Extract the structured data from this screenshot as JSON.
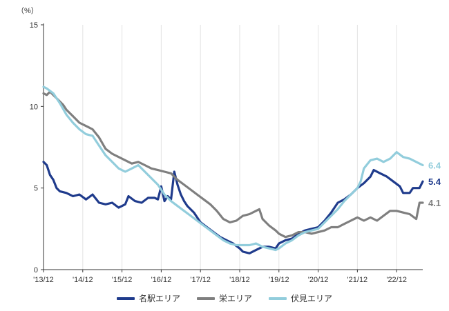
{
  "chart_data": {
    "type": "line",
    "unit_label": "（%）",
    "ylim": [
      0,
      15
    ],
    "yticks": [
      0,
      5,
      10,
      15
    ],
    "xlim": [
      2013.917,
      2023.583
    ],
    "xticks": [
      {
        "label": "'13/12",
        "value": 2013.917
      },
      {
        "label": "'14/12",
        "value": 2014.917
      },
      {
        "label": "'15/12",
        "value": 2015.917
      },
      {
        "label": "'16/12",
        "value": 2016.917
      },
      {
        "label": "'17/12",
        "value": 2017.917
      },
      {
        "label": "'18/12",
        "value": 2018.917
      },
      {
        "label": "'19/12",
        "value": 2019.917
      },
      {
        "label": "'20/12",
        "value": 2020.917
      },
      {
        "label": "'21/12",
        "value": 2021.917
      },
      {
        "label": "'22/12",
        "value": 2022.917
      }
    ],
    "series": [
      {
        "name": "名駅エリア",
        "color": "#1f3b8c",
        "end_label": "5.4",
        "points": [
          [
            2013.917,
            6.6
          ],
          [
            2014.0,
            6.4
          ],
          [
            2014.083,
            5.8
          ],
          [
            2014.167,
            5.5
          ],
          [
            2014.25,
            5.0
          ],
          [
            2014.333,
            4.8
          ],
          [
            2014.5,
            4.7
          ],
          [
            2014.667,
            4.5
          ],
          [
            2014.833,
            4.6
          ],
          [
            2015.0,
            4.3
          ],
          [
            2015.167,
            4.6
          ],
          [
            2015.333,
            4.1
          ],
          [
            2015.5,
            4.0
          ],
          [
            2015.667,
            4.1
          ],
          [
            2015.833,
            3.8
          ],
          [
            2016.0,
            4.0
          ],
          [
            2016.083,
            4.5
          ],
          [
            2016.25,
            4.2
          ],
          [
            2016.417,
            4.1
          ],
          [
            2016.583,
            4.4
          ],
          [
            2016.75,
            4.4
          ],
          [
            2016.833,
            4.3
          ],
          [
            2016.917,
            5.1
          ],
          [
            2017.0,
            4.2
          ],
          [
            2017.083,
            4.5
          ],
          [
            2017.167,
            4.3
          ],
          [
            2017.25,
            6.0
          ],
          [
            2017.333,
            5.2
          ],
          [
            2017.417,
            4.6
          ],
          [
            2017.5,
            4.2
          ],
          [
            2017.583,
            3.9
          ],
          [
            2017.75,
            3.5
          ],
          [
            2017.917,
            2.9
          ],
          [
            2018.083,
            2.6
          ],
          [
            2018.25,
            2.3
          ],
          [
            2018.417,
            2.0
          ],
          [
            2018.583,
            1.8
          ],
          [
            2018.75,
            1.6
          ],
          [
            2018.917,
            1.3
          ],
          [
            2019.0,
            1.1
          ],
          [
            2019.167,
            1.0
          ],
          [
            2019.333,
            1.2
          ],
          [
            2019.5,
            1.4
          ],
          [
            2019.667,
            1.4
          ],
          [
            2019.833,
            1.3
          ],
          [
            2019.917,
            1.6
          ],
          [
            2020.083,
            1.8
          ],
          [
            2020.25,
            1.9
          ],
          [
            2020.417,
            2.2
          ],
          [
            2020.583,
            2.4
          ],
          [
            2020.75,
            2.5
          ],
          [
            2020.917,
            2.6
          ],
          [
            2021.083,
            3.0
          ],
          [
            2021.25,
            3.5
          ],
          [
            2021.417,
            4.1
          ],
          [
            2021.583,
            4.3
          ],
          [
            2021.75,
            4.6
          ],
          [
            2021.917,
            5.0
          ],
          [
            2022.083,
            5.3
          ],
          [
            2022.25,
            5.7
          ],
          [
            2022.333,
            6.1
          ],
          [
            2022.5,
            5.9
          ],
          [
            2022.667,
            5.7
          ],
          [
            2022.833,
            5.4
          ],
          [
            2023.0,
            5.1
          ],
          [
            2023.083,
            4.7
          ],
          [
            2023.25,
            4.7
          ],
          [
            2023.333,
            5.0
          ],
          [
            2023.5,
            5.0
          ],
          [
            2023.583,
            5.4
          ]
        ]
      },
      {
        "name": "栄エリア",
        "color": "#7f7f7f",
        "end_label": "4.1",
        "points": [
          [
            2013.917,
            10.8
          ],
          [
            2014.0,
            10.7
          ],
          [
            2014.083,
            10.9
          ],
          [
            2014.25,
            10.5
          ],
          [
            2014.417,
            10.1
          ],
          [
            2014.5,
            9.8
          ],
          [
            2014.667,
            9.4
          ],
          [
            2014.833,
            9.0
          ],
          [
            2015.0,
            8.8
          ],
          [
            2015.167,
            8.6
          ],
          [
            2015.333,
            8.1
          ],
          [
            2015.5,
            7.4
          ],
          [
            2015.667,
            7.1
          ],
          [
            2015.833,
            6.9
          ],
          [
            2016.0,
            6.7
          ],
          [
            2016.167,
            6.5
          ],
          [
            2016.333,
            6.6
          ],
          [
            2016.5,
            6.4
          ],
          [
            2016.667,
            6.2
          ],
          [
            2016.833,
            6.1
          ],
          [
            2017.0,
            6.0
          ],
          [
            2017.167,
            5.9
          ],
          [
            2017.333,
            5.5
          ],
          [
            2017.5,
            5.2
          ],
          [
            2017.667,
            4.9
          ],
          [
            2017.833,
            4.6
          ],
          [
            2018.0,
            4.3
          ],
          [
            2018.167,
            4.0
          ],
          [
            2018.333,
            3.6
          ],
          [
            2018.5,
            3.1
          ],
          [
            2018.667,
            2.9
          ],
          [
            2018.833,
            3.0
          ],
          [
            2019.0,
            3.3
          ],
          [
            2019.167,
            3.4
          ],
          [
            2019.333,
            3.6
          ],
          [
            2019.417,
            3.7
          ],
          [
            2019.5,
            3.1
          ],
          [
            2019.667,
            2.7
          ],
          [
            2019.833,
            2.4
          ],
          [
            2019.917,
            2.2
          ],
          [
            2020.083,
            2.0
          ],
          [
            2020.25,
            2.1
          ],
          [
            2020.417,
            2.3
          ],
          [
            2020.583,
            2.3
          ],
          [
            2020.75,
            2.2
          ],
          [
            2020.917,
            2.3
          ],
          [
            2021.083,
            2.4
          ],
          [
            2021.25,
            2.6
          ],
          [
            2021.417,
            2.6
          ],
          [
            2021.583,
            2.8
          ],
          [
            2021.75,
            3.0
          ],
          [
            2021.917,
            3.2
          ],
          [
            2022.083,
            3.0
          ],
          [
            2022.25,
            3.2
          ],
          [
            2022.417,
            3.0
          ],
          [
            2022.583,
            3.3
          ],
          [
            2022.75,
            3.6
          ],
          [
            2022.917,
            3.6
          ],
          [
            2023.083,
            3.5
          ],
          [
            2023.25,
            3.4
          ],
          [
            2023.417,
            3.1
          ],
          [
            2023.5,
            4.1
          ],
          [
            2023.583,
            4.1
          ]
        ]
      },
      {
        "name": "伏見エリア",
        "color": "#92cddc",
        "end_label": "6.4",
        "points": [
          [
            2013.917,
            11.2
          ],
          [
            2014.0,
            11.1
          ],
          [
            2014.167,
            10.8
          ],
          [
            2014.333,
            10.2
          ],
          [
            2014.5,
            9.5
          ],
          [
            2014.667,
            9.0
          ],
          [
            2014.833,
            8.6
          ],
          [
            2015.0,
            8.3
          ],
          [
            2015.167,
            8.2
          ],
          [
            2015.333,
            7.6
          ],
          [
            2015.5,
            7.0
          ],
          [
            2015.667,
            6.6
          ],
          [
            2015.833,
            6.2
          ],
          [
            2016.0,
            6.0
          ],
          [
            2016.167,
            6.2
          ],
          [
            2016.333,
            6.4
          ],
          [
            2016.5,
            6.0
          ],
          [
            2016.667,
            5.6
          ],
          [
            2016.833,
            5.2
          ],
          [
            2017.0,
            4.6
          ],
          [
            2017.167,
            4.2
          ],
          [
            2017.333,
            3.9
          ],
          [
            2017.5,
            3.6
          ],
          [
            2017.667,
            3.3
          ],
          [
            2017.833,
            3.0
          ],
          [
            2018.0,
            2.7
          ],
          [
            2018.167,
            2.4
          ],
          [
            2018.333,
            2.1
          ],
          [
            2018.5,
            1.8
          ],
          [
            2018.667,
            1.6
          ],
          [
            2018.833,
            1.5
          ],
          [
            2019.0,
            1.5
          ],
          [
            2019.167,
            1.5
          ],
          [
            2019.333,
            1.6
          ],
          [
            2019.5,
            1.4
          ],
          [
            2019.667,
            1.3
          ],
          [
            2019.833,
            1.2
          ],
          [
            2019.917,
            1.3
          ],
          [
            2020.083,
            1.6
          ],
          [
            2020.25,
            1.8
          ],
          [
            2020.417,
            2.1
          ],
          [
            2020.583,
            2.3
          ],
          [
            2020.75,
            2.4
          ],
          [
            2020.917,
            2.5
          ],
          [
            2021.083,
            2.9
          ],
          [
            2021.25,
            3.3
          ],
          [
            2021.417,
            3.7
          ],
          [
            2021.583,
            4.2
          ],
          [
            2021.75,
            4.6
          ],
          [
            2021.917,
            5.0
          ],
          [
            2022.0,
            5.4
          ],
          [
            2022.083,
            6.2
          ],
          [
            2022.25,
            6.7
          ],
          [
            2022.417,
            6.8
          ],
          [
            2022.583,
            6.6
          ],
          [
            2022.75,
            6.8
          ],
          [
            2022.917,
            7.2
          ],
          [
            2023.083,
            6.9
          ],
          [
            2023.25,
            6.8
          ],
          [
            2023.417,
            6.6
          ],
          [
            2023.583,
            6.4
          ]
        ]
      }
    ]
  }
}
